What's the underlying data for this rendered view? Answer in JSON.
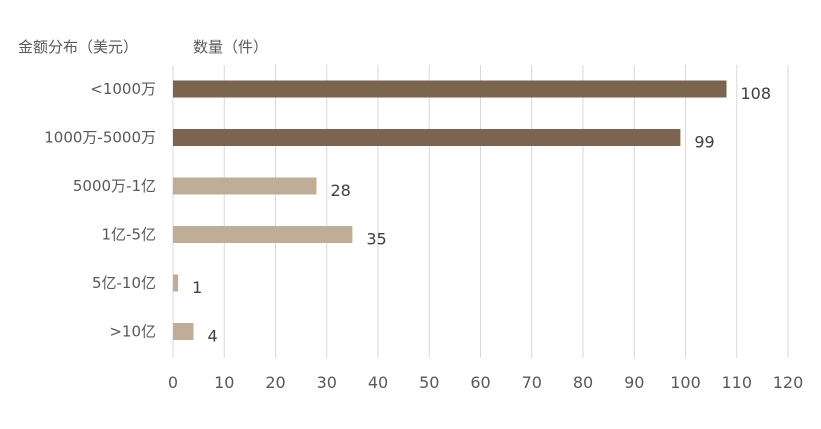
{
  "header": {
    "category_header": "金额分布（美元）",
    "value_header": "数量（件）"
  },
  "chart_data": {
    "type": "bar",
    "orientation": "horizontal",
    "categories": [
      "<1000万",
      "1000万-5000万",
      "5000万-1亿",
      "1亿-5亿",
      "5亿-10亿",
      ">10亿"
    ],
    "values": [
      108,
      99,
      28,
      35,
      1,
      4
    ],
    "bar_colors": [
      "#7b6450",
      "#7b6450",
      "#c0ad98",
      "#c0ad98",
      "#c0ad98",
      "#c0ad98"
    ],
    "xlim": [
      0,
      120
    ],
    "xticks": [
      0,
      10,
      20,
      30,
      40,
      50,
      60,
      70,
      80,
      90,
      100,
      110,
      120
    ],
    "grid": "vertical",
    "data_labels": true
  }
}
